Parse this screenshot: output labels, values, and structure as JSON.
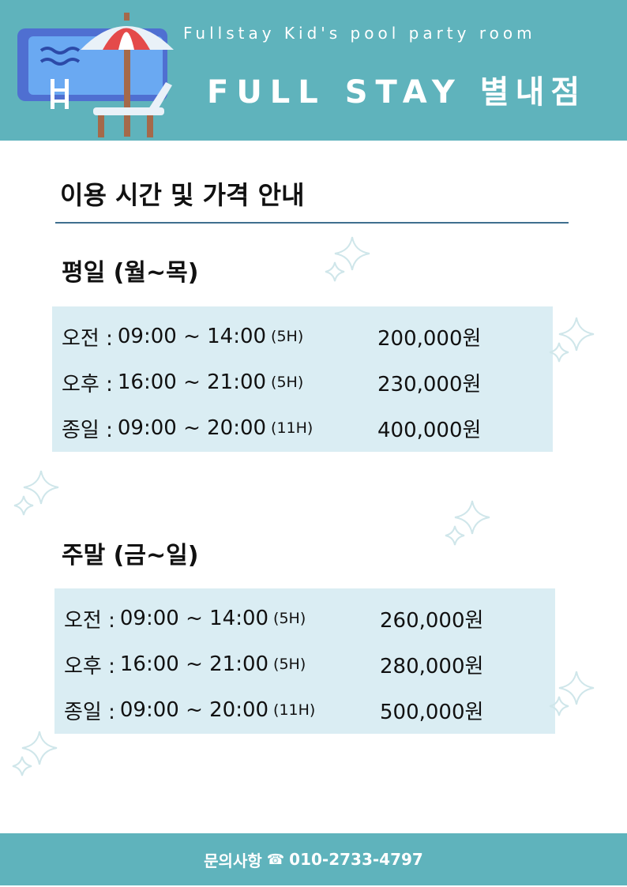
{
  "header": {
    "subtitle": "Fullstay Kid's pool party room",
    "brand": "FULL STAY",
    "branch": "별내점"
  },
  "page_title": "이용 시간 및 가격 안내",
  "weekday": {
    "title": "평일 (월~목)",
    "rows": [
      {
        "slot": "오전 :",
        "time": "09:00 ~ 14:00",
        "duration": "(5H)",
        "price": "200,000원"
      },
      {
        "slot": "오후 :",
        "time": "16:00 ~ 21:00",
        "duration": "(5H)",
        "price": "230,000원"
      },
      {
        "slot": "종일 :",
        "time": "09:00 ~ 20:00",
        "duration": "(11H)",
        "price": "400,000원"
      }
    ]
  },
  "weekend": {
    "title": "주말 (금~일)",
    "rows": [
      {
        "slot": "오전 :",
        "time": "09:00 ~ 14:00",
        "duration": "(5H)",
        "price": "260,000원"
      },
      {
        "slot": "오후 :",
        "time": "16:00 ~ 21:00",
        "duration": "(5H)",
        "price": "280,000원"
      },
      {
        "slot": "종일 :",
        "time": "09:00 ~ 20:00",
        "duration": "(11H)",
        "price": "500,000원"
      }
    ]
  },
  "footer": {
    "contact_label": "문의사항",
    "phone_icon": "☎",
    "phone": "010-2733-4797"
  },
  "colors": {
    "header_bg": "#5fb3bc",
    "box_bg": "#daedf3",
    "divider": "#3f6f8f",
    "sparkle": "#cfe6ea"
  },
  "icons": [
    "pool-umbrella-logo-icon",
    "sparkle-icon",
    "phone-icon"
  ]
}
